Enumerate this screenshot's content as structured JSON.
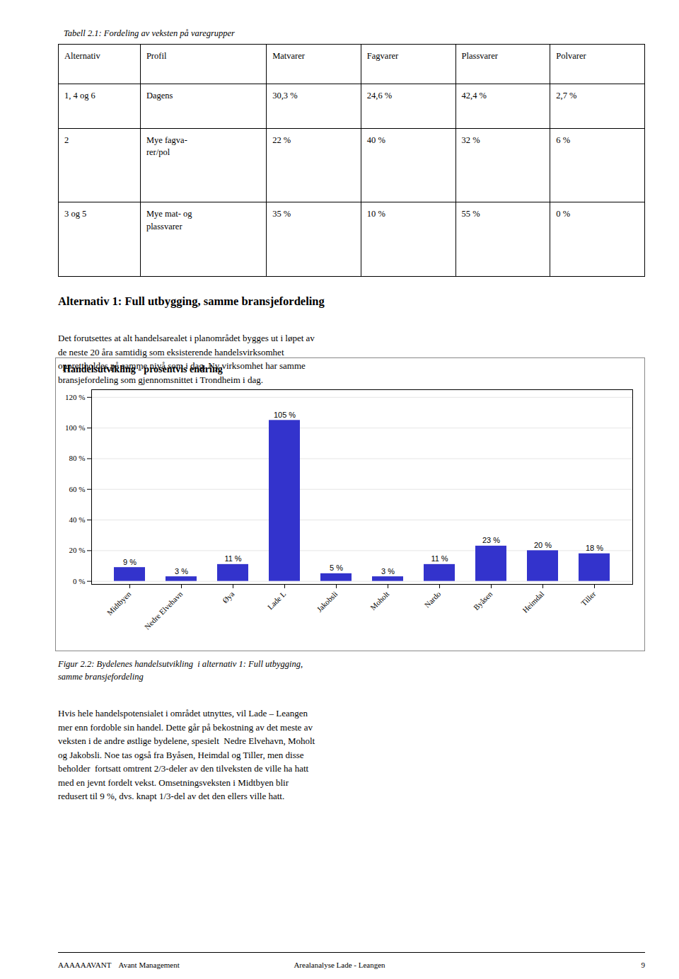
{
  "table_title": "Tabell 2.1: Fordeling av veksten på varegrupper",
  "table_headers": [
    "Alternativ",
    "Profil",
    "Matvarer",
    "Fagvarer",
    "Plassvarer",
    "Polvarer"
  ],
  "table_rows": [
    [
      "1, 4 og 6",
      "Dagens",
      "30,3 %",
      "24,6 %",
      "42,4 %",
      "2,7 %"
    ],
    [
      "2",
      "Mye fagva-\nrer/pol",
      "22 %",
      "40 %",
      "32 %",
      "6 %"
    ],
    [
      "3 og 5",
      "Mye mat- og\nplassvarer",
      "35 %",
      "10 %",
      "55 %",
      "0 %"
    ]
  ],
  "section_title": "Alternativ 1: Full utbygging, samme bransjefordeling",
  "section_para1": "Det forutsettes at alt handelsarealet i planområdet bygges ut i løpet av\nde neste 20 åra samtidig som eksisterende handelsvirksomhet\nopprettholdes på samme nivå som i dag. Ny virksomhet har samme\nbransjefordeling som gjennomsnittet i Trondheim i dag.",
  "chart_data": {
    "type": "bar",
    "title": "Handelsutvikling - prosentvis endring",
    "categories": [
      "Midtbyen",
      "Nedre Elvehavn",
      "Øya",
      "Lade L",
      "Jakobsli",
      "Moholt",
      "Nardo",
      "Byåsen",
      "Heimdal",
      "Tiller"
    ],
    "values": [
      9,
      3,
      11,
      105,
      5,
      3,
      11,
      23,
      20,
      18
    ],
    "value_labels": [
      "9 %",
      "3 %",
      "11 %",
      "105 %",
      "5 %",
      "3 %",
      "11 %",
      "23 %",
      "20 %",
      "18 %"
    ],
    "data_labels": true,
    "color": "#3333cc",
    "ylim": [
      -2,
      125
    ],
    "yticks": [
      {
        "value": 0,
        "label": "0 %"
      },
      {
        "value": 20,
        "label": "20 %"
      },
      {
        "value": 40,
        "label": "40 %"
      },
      {
        "value": 60,
        "label": "60 %"
      },
      {
        "value": 80,
        "label": "80 %"
      },
      {
        "value": 100,
        "label": "100 %"
      },
      {
        "value": 120,
        "label": "120 %"
      }
    ],
    "grid": true
  },
  "fig_caption": "Figur 2.2: Bydelenes handelsutvikling  i alternativ 1: Full utbygging,\nsamme bransjefordeling",
  "body_text": "Hvis hele handelspotensialet i området utnyttes, vil Lade – Leangen\nmer enn fordoble sin handel. Dette går på bekostning av det meste av\nveksten i de andre østlige bydelene, spesielt  Nedre Elvehavn, Moholt\nog Jakobsli. Noe tas også fra Byåsen, Heimdal og Tiller, men disse\nbeholder  fortsatt omtrent 2/3-deler av den tilveksten de ville ha hatt\nmed en jevnt fordelt vekst. Omsetningsveksten i Midtbyen blir\nredusert til 9 %, dvs. knapt 1/3-del av det den ellers ville hatt.",
  "footer_left": "AAAAAAVANT    Avant Management",
  "footer_center": "Arealanalyse Lade - Leangen",
  "footer_right": "9"
}
